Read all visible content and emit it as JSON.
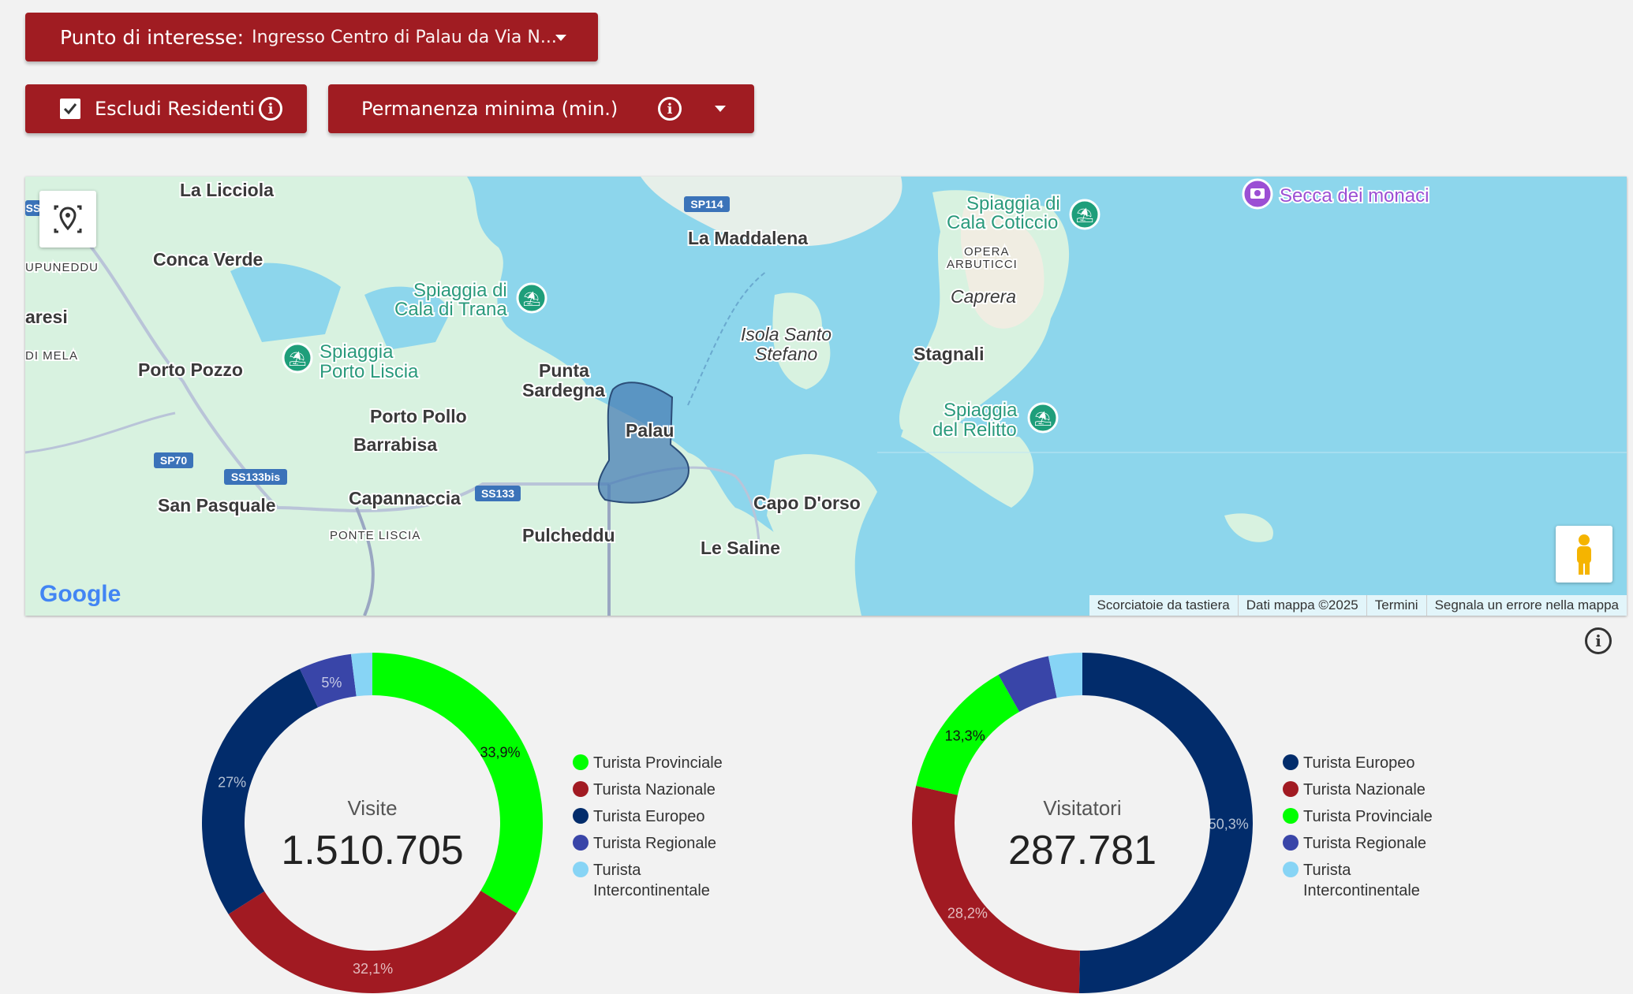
{
  "filters": {
    "poi_label": "Punto di interesse:",
    "poi_value": "Ingresso Centro di Palau da Via N...",
    "exclude_residents_label": "Escludi Residenti",
    "exclude_residents_checked": true,
    "min_stay_label": "Permanenza minima (min.)"
  },
  "map": {
    "places": [
      "La Licciola",
      "Conca Verde",
      "Porto Pozzo",
      "Porto Pollo",
      "Barrabisa",
      "Capannaccia",
      "San Pasquale",
      "Punta",
      "Sardegna",
      "Palau",
      "Pulcheddu",
      "Capo D'orso",
      "Le Saline",
      "La Maddalena",
      "Isola Santo",
      "Stefano",
      "Stagnali",
      "Caprera"
    ],
    "green_places": [
      "Spiaggia di",
      "Cala di Trana",
      "Spiaggia",
      "Porto Liscia",
      "Spiaggia di",
      "Cala Coticcio",
      "Spiaggia",
      "del Relitto"
    ],
    "small_places": [
      "PONTE LISCIA",
      "OPERA",
      "ARBUTICCI",
      "UPUNEDDU",
      "DI MELA",
      "aresi"
    ],
    "purple_place": "Secca dei monaci",
    "roads": [
      "SP114",
      "SP70",
      "SS133bis",
      "SS133",
      "SS"
    ],
    "logo": "Google",
    "attribution": [
      "Scorciatoie da tastiera",
      "Dati mappa ©2025",
      "Termini",
      "Segnala un errore nella mappa"
    ]
  },
  "chart_data": [
    {
      "type": "pie",
      "title": "Visite",
      "total": "1.510.705",
      "categories": [
        "Turista Provinciale",
        "Turista Nazionale",
        "Turista Europeo",
        "Turista Regionale",
        "Turista Intercontinentale"
      ],
      "values": [
        33.9,
        32.1,
        27.0,
        5.0,
        2.0
      ],
      "labels": [
        "33,9%",
        "32,1%",
        "27%",
        "5%",
        ""
      ],
      "colors": [
        "#00ff00",
        "#a11a22",
        "#022c6b",
        "#3945a8",
        "#87d4f5"
      ],
      "legend_order": [
        0,
        1,
        2,
        3,
        4
      ]
    },
    {
      "type": "pie",
      "title": "Visitatori",
      "total": "287.781",
      "categories": [
        "Turista Europeo",
        "Turista Nazionale",
        "Turista Provinciale",
        "Turista Regionale",
        "Turista Intercontinentale"
      ],
      "values": [
        50.3,
        28.2,
        13.3,
        5.0,
        3.2
      ],
      "labels": [
        "50,3%",
        "28,2%",
        "13,3%",
        "",
        ""
      ],
      "colors": [
        "#022c6b",
        "#a11a22",
        "#00ff00",
        "#3945a8",
        "#87d4f5"
      ],
      "legend_order": [
        0,
        1,
        2,
        3,
        4
      ]
    }
  ]
}
